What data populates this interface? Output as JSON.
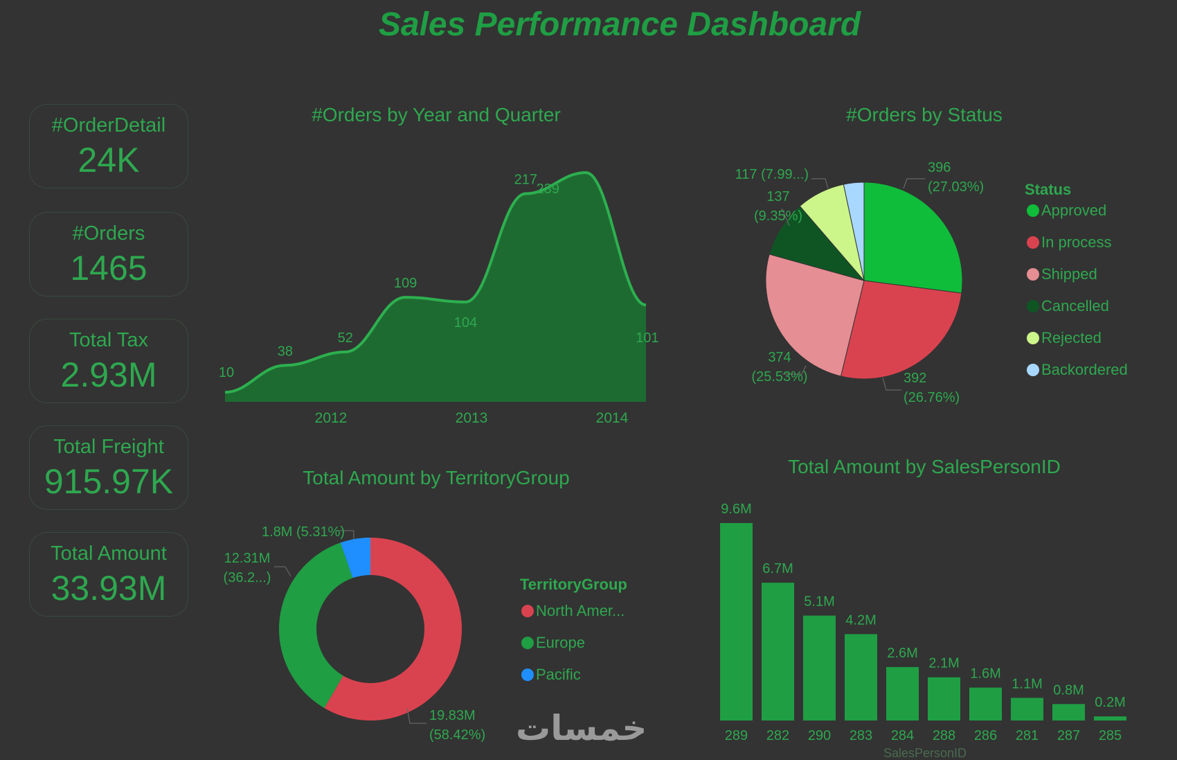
{
  "page": {
    "title": "Sales Performance Dashboard",
    "watermark": "خمسات"
  },
  "kpis": [
    {
      "label": "#OrderDetail",
      "value": "24K"
    },
    {
      "label": "#Orders",
      "value": "1465"
    },
    {
      "label": "Total Tax",
      "value": "2.93M"
    },
    {
      "label": "Total Freight",
      "value": "915.97K"
    },
    {
      "label": "Total Amount",
      "value": "33.93M"
    }
  ],
  "colors": {
    "accent": "#2ea84f",
    "background": "#333333"
  },
  "chart_data": [
    {
      "type": "area",
      "title": "#Orders by Year and Quarter",
      "x_ticks": [
        "2012",
        "2013",
        "2014"
      ],
      "values": [
        10,
        38,
        52,
        109,
        104,
        217,
        239,
        101
      ],
      "value_labels": [
        "10",
        "38",
        "52",
        "109",
        "104",
        "217",
        "239",
        "101"
      ],
      "ylim": [
        0,
        260
      ],
      "color": "#1e6b32"
    },
    {
      "type": "pie",
      "title": "#Orders by Status",
      "legend_title": "Status",
      "slices": [
        {
          "name": "Approved",
          "value": 396,
          "label1": "396",
          "label2": "(27.03%)",
          "color": "#0fbd3a"
        },
        {
          "name": "In process",
          "value": 392,
          "label1": "392",
          "label2": "(26.76%)",
          "color": "#d9434f"
        },
        {
          "name": "Shipped",
          "value": 374,
          "label1": "374",
          "label2": "(25.53%)",
          "color": "#e58e93"
        },
        {
          "name": "Cancelled",
          "value": 137,
          "label1": "137",
          "label2": "(9.35%)",
          "color": "#0f5524"
        },
        {
          "name": "Rejected",
          "value": 117,
          "label1": "117 (7.99...)",
          "label2": "",
          "color": "#ccf58a"
        },
        {
          "name": "Backordered",
          "value": 49,
          "label1": "",
          "label2": "",
          "color": "#a8d8ff"
        }
      ]
    },
    {
      "type": "pie",
      "subtype": "donut",
      "title": "Total Amount by TerritoryGroup",
      "legend_title": "TerritoryGroup",
      "slices": [
        {
          "name": "North Amer...",
          "value": 58.42,
          "label1": "19.83M",
          "label2": "(58.42%)",
          "color": "#d9434f"
        },
        {
          "name": "Europe",
          "value": 36.27,
          "label1": "12.31M",
          "label2": "(36.2...)",
          "color": "#1f9e44"
        },
        {
          "name": "Pacific",
          "value": 5.31,
          "label1": "1.8M (5.31%)",
          "label2": "",
          "color": "#1f8fff"
        }
      ]
    },
    {
      "type": "bar",
      "title": "Total Amount by SalesPersonID",
      "xlabel": "SalesPersonID",
      "categories": [
        "289",
        "282",
        "290",
        "283",
        "284",
        "288",
        "286",
        "281",
        "287",
        "285"
      ],
      "values": [
        9.6,
        6.7,
        5.1,
        4.2,
        2.6,
        2.1,
        1.6,
        1.1,
        0.8,
        0.2
      ],
      "value_labels": [
        "9.6M",
        "6.7M",
        "5.1M",
        "4.2M",
        "2.6M",
        "2.1M",
        "1.6M",
        "1.1M",
        "0.8M",
        "0.2M"
      ],
      "ylim": [
        0,
        9.6
      ],
      "color": "#1f9e44"
    }
  ]
}
